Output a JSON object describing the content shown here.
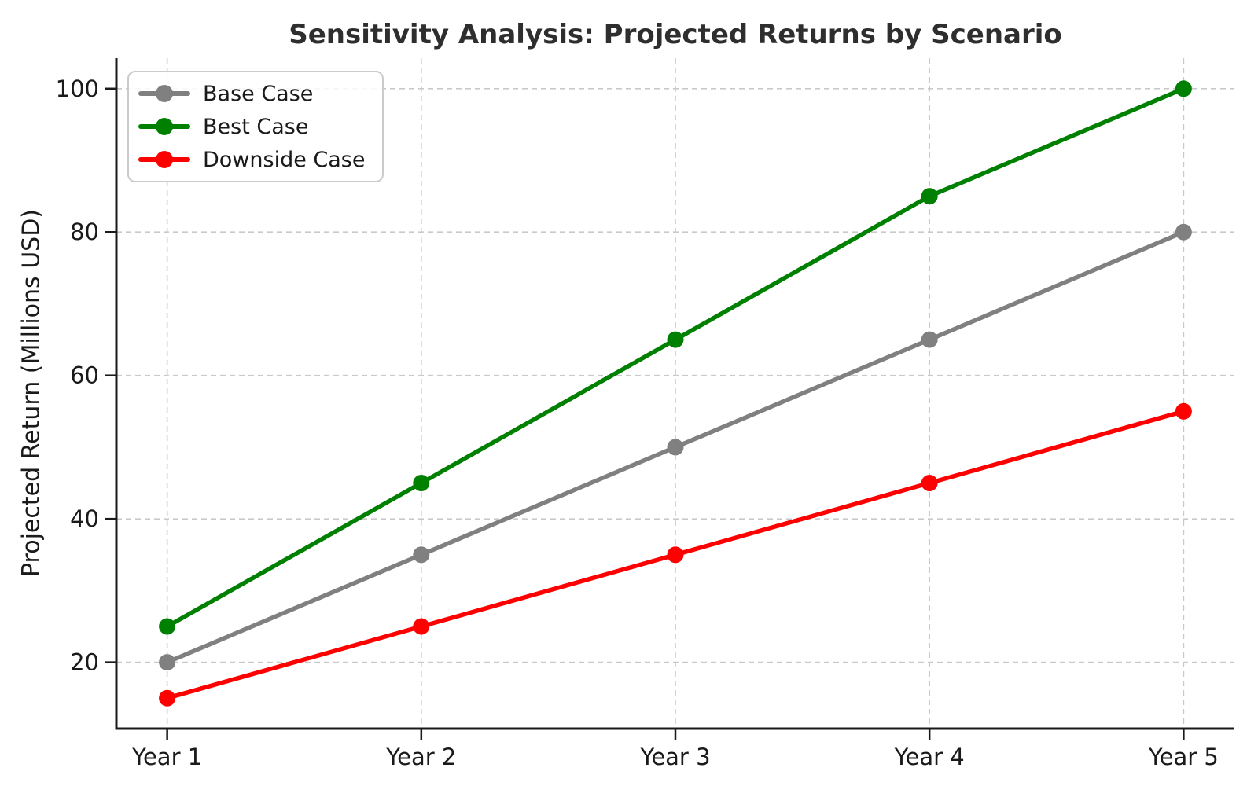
{
  "title": "Sensitivity Analysis: Projected Returns by Scenario",
  "chart_data": {
    "type": "line",
    "title": "Sensitivity Analysis: Projected Returns by Scenario",
    "xlabel": "",
    "ylabel": "Projected Return (Millions USD)",
    "x_categories": [
      "Year 1",
      "Year 2",
      "Year 3",
      "Year 4",
      "Year 5"
    ],
    "x_values": [
      1,
      2,
      3,
      4,
      5
    ],
    "series": [
      {
        "name": "Base Case",
        "color": "#808080",
        "values": [
          20,
          35,
          50,
          65,
          80
        ]
      },
      {
        "name": "Best Case",
        "color": "#008000",
        "values": [
          25,
          45,
          65,
          85,
          100
        ]
      },
      {
        "name": "Downside Case",
        "color": "#ff0000",
        "values": [
          15,
          25,
          35,
          45,
          55
        ]
      }
    ],
    "y_ticks": [
      20,
      40,
      60,
      80,
      100
    ],
    "ylim": [
      10.75,
      104.25
    ],
    "xlim": [
      0.8,
      5.2
    ],
    "grid": true,
    "grid_style": "dashed",
    "legend_position": "upper left",
    "style": {
      "background": "#ffffff",
      "grid_color": "#c9c9c9",
      "spine_color": "#1a1a1a",
      "text_color": "#1a1a1a",
      "title_color": "#2e2e2e",
      "legend_border_color": "#cbcbcb"
    }
  }
}
